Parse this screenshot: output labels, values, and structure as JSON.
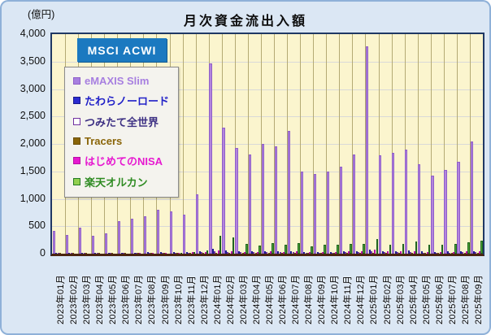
{
  "title": "月次資金流出入額",
  "unit_label": "(億円)",
  "benchmark": {
    "label": "MSCI ACWI"
  },
  "frame": {
    "background": "#dbe7f4",
    "plot_background": "#fbf5ce",
    "plot_border": "#1f3864",
    "axis_line": "#4a2410",
    "vgrid_color": "#b4aa74",
    "hgrid_color": "#d9d9d9"
  },
  "chart_data": {
    "type": "bar",
    "title": "月次資金流出入額",
    "ylabel": "(億円)",
    "ylim": [
      0,
      4000
    ],
    "ytick_step": 500,
    "yticks": [
      "0",
      "500",
      "1,000",
      "1,500",
      "2,000",
      "2,500",
      "3,000",
      "3,500",
      "4,000"
    ],
    "grid": true,
    "legend_position": "upper-left-inside",
    "categories": [
      "2023年01月",
      "2023年02月",
      "2023年03月",
      "2023年04月",
      "2023年05月",
      "2023年06月",
      "2023年07月",
      "2023年08月",
      "2023年09月",
      "2023年10月",
      "2023年11月",
      "2023年12月",
      "2024年01月",
      "2024年02月",
      "2024年03月",
      "2024年04月",
      "2024年05月",
      "2024年06月",
      "2024年07月",
      "2024年08月",
      "2024年09月",
      "2024年10月",
      "2024年11月",
      "2024年12月",
      "2025年01月",
      "2025年02月",
      "2025年03月",
      "2025年04月",
      "2025年05月",
      "2025年06月",
      "2025年07月",
      "2025年08月",
      "2025年09月"
    ],
    "series": [
      {
        "name": "eMAXIS Slim",
        "fill": "#b284de",
        "edge": "#8f5fc8",
        "text_color": "#a77fe0",
        "swatch_fill": "#a77fe0",
        "swatch_edge": "#8f5fc8",
        "values": [
          420,
          340,
          480,
          320,
          370,
          590,
          630,
          680,
          800,
          770,
          710,
          1080,
          3460,
          2300,
          1920,
          1810,
          2000,
          1960,
          2240,
          1500,
          1450,
          1490,
          1580,
          1810,
          3780,
          1800,
          1840,
          1900,
          1630,
          1420,
          1520,
          1680,
          2050
        ]
      },
      {
        "name": "たわらノーロード",
        "fill": "#2b2bd0",
        "edge": "#1a1a8c",
        "text_color": "#2222c8",
        "swatch_fill": "#2b2bd0",
        "swatch_edge": "#1a1a8c",
        "values": [
          15,
          12,
          18,
          12,
          14,
          20,
          22,
          25,
          28,
          25,
          30,
          45,
          90,
          60,
          45,
          40,
          50,
          40,
          45,
          35,
          30,
          35,
          40,
          45,
          80,
          45,
          50,
          55,
          40,
          35,
          40,
          45,
          50
        ]
      },
      {
        "name": "つみたて全世界",
        "fill": "#ffffff",
        "edge": "#7030a0",
        "text_color": "#3d3083",
        "swatch_fill": "#ffffff",
        "swatch_edge": "#7030a0",
        "values": [
          10,
          8,
          12,
          8,
          10,
          12,
          14,
          15,
          15,
          15,
          18,
          25,
          45,
          35,
          30,
          25,
          30,
          25,
          30,
          22,
          20,
          22,
          25,
          28,
          40,
          25,
          28,
          30,
          22,
          20,
          22,
          25,
          28
        ]
      },
      {
        "name": "Tracers",
        "fill": "#8a6508",
        "edge": "#6b4e05",
        "text_color": "#8a6508",
        "swatch_fill": "#8a6508",
        "swatch_edge": "#6b4e05",
        "values": [
          5,
          4,
          6,
          4,
          5,
          6,
          7,
          8,
          8,
          8,
          10,
          15,
          20,
          15,
          12,
          10,
          12,
          10,
          12,
          8,
          8,
          10,
          10,
          12,
          18,
          10,
          12,
          12,
          10,
          8,
          10,
          10,
          12
        ]
      },
      {
        "name": "はじめてのNISA",
        "fill": "#e619d0",
        "edge": "#b80fa6",
        "text_color": "#e619d0",
        "swatch_fill": "#e619d0",
        "swatch_edge": "#b80fa6",
        "values": [
          0,
          0,
          0,
          0,
          0,
          0,
          10,
          15,
          18,
          20,
          25,
          30,
          60,
          50,
          35,
          30,
          40,
          35,
          40,
          30,
          30,
          35,
          40,
          45,
          70,
          40,
          45,
          50,
          35,
          30,
          35,
          40,
          45
        ]
      },
      {
        "name": "楽天オルカン",
        "fill": "#4aa534",
        "edge": "#1e641e",
        "text_color": "#2e8b22",
        "swatch_fill": "#92d050",
        "swatch_edge": "#237a23",
        "values": [
          0,
          0,
          0,
          0,
          0,
          0,
          0,
          0,
          0,
          10,
          25,
          65,
          320,
          290,
          175,
          145,
          200,
          170,
          190,
          135,
          170,
          160,
          185,
          175,
          260,
          170,
          185,
          220,
          160,
          170,
          180,
          205,
          235
        ]
      }
    ]
  }
}
